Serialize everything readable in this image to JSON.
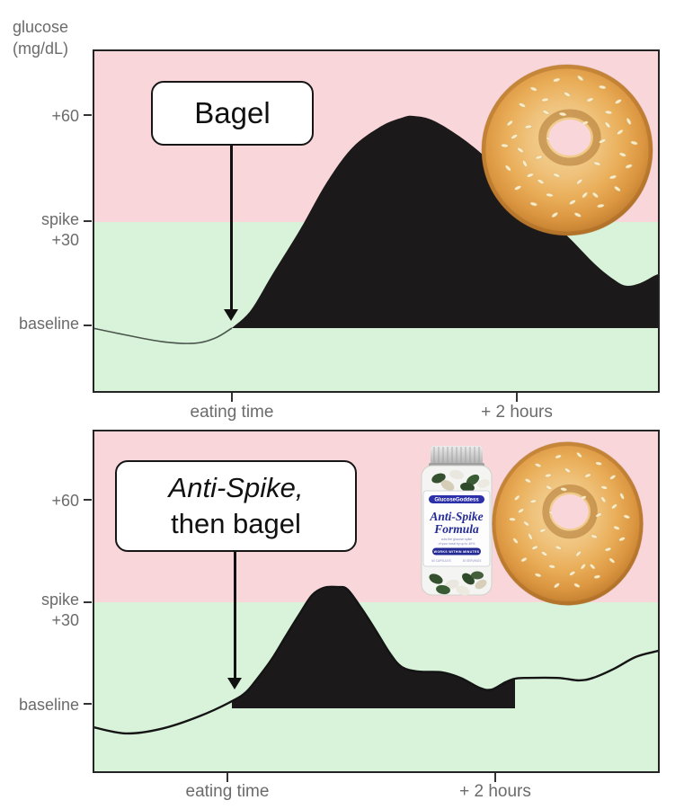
{
  "colors": {
    "zone_above_spike": "#f9d6d9",
    "zone_below_spike": "#d9f3da",
    "curve_fill": "#1b1919",
    "chart_border": "#242424",
    "axis_text": "#6b6b6b",
    "note_text": "#111111",
    "pre_line_top": "#4a554c",
    "line_bottom": "#141414"
  },
  "y_axis": {
    "title_line1": "glucose",
    "title_line2": "(mg/dL)",
    "plus60": "+60",
    "spike": "spike",
    "plus30": "+30",
    "baseline": "baseline"
  },
  "x_axis": {
    "eating": "eating time",
    "plus2h": "+ 2 hours"
  },
  "annotations": {
    "top_chart": "Bagel",
    "bottom_chart_line1": "Anti-Spike,",
    "bottom_chart_line2": "then bagel"
  },
  "bottle": {
    "brand": "GlucoseGoddess",
    "product_line1": "Anti-Spike",
    "product_line2": "Formula",
    "claim_line1": "cuts the glucose spike",
    "claim_line2": "of your meal by up to 40%",
    "banner": "WORKS WITHIN MINUTES",
    "count_left": "60 CAPSULES",
    "count_right": "30 SERVINGS"
  },
  "chart_data": [
    {
      "type": "area",
      "title": "Bagel",
      "x_unit": "minutes from eating time",
      "y_unit": "glucose mg/dL relative to baseline",
      "x_ticks": [
        {
          "minute": 0,
          "label": "eating time"
        },
        {
          "minute": 120,
          "label": "+ 2 hours"
        }
      ],
      "y_ticks": [
        {
          "value": 60,
          "label": "+60"
        },
        {
          "value": 30,
          "label": "spike +30"
        },
        {
          "value": 0,
          "label": "baseline"
        }
      ],
      "spike_threshold": 30,
      "ylim": [
        -18,
        78
      ],
      "fill_range_minutes": [
        0,
        181
      ],
      "points": [
        [
          -59,
          0
        ],
        [
          -46,
          -1.8
        ],
        [
          -30,
          -3.8
        ],
        [
          -16,
          -4.3
        ],
        [
          -7,
          -2.8
        ],
        [
          0,
          0
        ],
        [
          8,
          5
        ],
        [
          17,
          15
        ],
        [
          29,
          28
        ],
        [
          40,
          41
        ],
        [
          51,
          51
        ],
        [
          63,
          57
        ],
        [
          72,
          59.5
        ],
        [
          77,
          60
        ],
        [
          86,
          58.5
        ],
        [
          101,
          52
        ],
        [
          116,
          43
        ],
        [
          131,
          33
        ],
        [
          143,
          25.5
        ],
        [
          154,
          18
        ],
        [
          162,
          13.7
        ],
        [
          167,
          12
        ],
        [
          173,
          12.7
        ],
        [
          179,
          14.8
        ],
        [
          181,
          15.3
        ]
      ]
    },
    {
      "type": "area",
      "title": "Anti-Spike, then bagel",
      "x_unit": "minutes from eating time",
      "y_unit": "glucose mg/dL relative to baseline",
      "x_ticks": [
        {
          "minute": 0,
          "label": "eating time"
        },
        {
          "minute": 120,
          "label": "+ 2 hours"
        }
      ],
      "y_ticks": [
        {
          "value": 60,
          "label": "+60"
        },
        {
          "value": 30,
          "label": "spike +30"
        },
        {
          "value": 0,
          "label": "baseline"
        }
      ],
      "spike_threshold": 30,
      "ylim": [
        -18,
        78
      ],
      "fill_range_minutes": [
        0,
        120
      ],
      "points": [
        [
          -59,
          -5.3
        ],
        [
          -45,
          -7.1
        ],
        [
          -30,
          -5.8
        ],
        [
          -14,
          -2.3
        ],
        [
          0,
          2
        ],
        [
          6,
          4.6
        ],
        [
          11,
          8.6
        ],
        [
          17,
          14
        ],
        [
          23,
          20.6
        ],
        [
          29,
          27
        ],
        [
          34,
          32
        ],
        [
          39,
          34.1
        ],
        [
          45,
          34.3
        ],
        [
          49,
          33.6
        ],
        [
          55,
          28.2
        ],
        [
          61,
          22
        ],
        [
          67,
          15.5
        ],
        [
          72,
          11.7
        ],
        [
          79,
          10.4
        ],
        [
          89,
          10.2
        ],
        [
          97,
          8.6
        ],
        [
          105,
          5.8
        ],
        [
          110,
          5.3
        ],
        [
          116,
          7.4
        ],
        [
          120,
          8.4
        ],
        [
          125,
          8.6
        ],
        [
          138,
          8.6
        ],
        [
          147,
          7.9
        ],
        [
          153,
          8.6
        ],
        [
          162,
          11.2
        ],
        [
          171,
          14.5
        ],
        [
          179,
          16
        ],
        [
          181,
          16.3
        ]
      ]
    }
  ]
}
